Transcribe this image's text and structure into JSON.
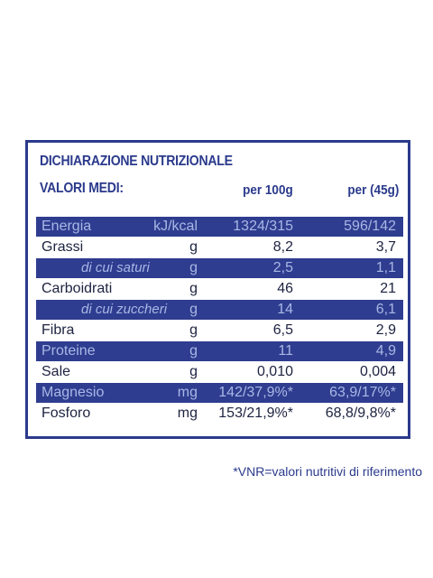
{
  "header": {
    "title": "DICHIARAZIONE NUTRIZIONALE",
    "subtitle": "VALORI MEDI:",
    "columns": [
      "per 100g",
      "per (45g)"
    ]
  },
  "table": {
    "rows": [
      [
        "Energia",
        "kJ/kcal",
        "1324/315",
        "596/142"
      ],
      [
        "Grassi",
        "g",
        "8,2",
        "3,7"
      ],
      [
        "di cui saturi",
        "g",
        "2,5",
        "1,1"
      ],
      [
        "Carboidrati",
        "g",
        "46",
        "21"
      ],
      [
        "di cui zuccheri",
        "g",
        "14",
        "6,1"
      ],
      [
        "Fibra",
        "g",
        "6,5",
        "2,9"
      ],
      [
        "Proteine",
        "g",
        "11",
        "4,9"
      ],
      [
        "Sale",
        "g",
        "0,010",
        "0,004"
      ],
      [
        "Magnesio",
        "mg",
        "142/37,9%*",
        "63,9/17%*"
      ],
      [
        "Fosforo",
        "mg",
        "153/21,9%*",
        "68,8/9,8%*"
      ]
    ]
  },
  "footnote": "*VNR=valori nutritivi di riferimento"
}
